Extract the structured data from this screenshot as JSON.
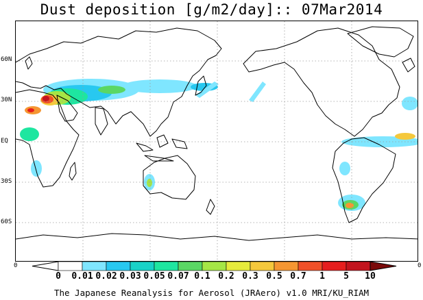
{
  "title": "Dust deposition [g/m2/day]:: 07Mar2014",
  "lat_labels": [
    "60N",
    "30N",
    "EQ",
    "30S",
    "60S"
  ],
  "edge_labels": {
    "left": "0",
    "right": "0"
  },
  "colorbar": {
    "labels": [
      "0",
      "0.01",
      "0.02",
      "0.03",
      "0.05",
      "0.07",
      "0.1",
      "0.2",
      "0.3",
      "0.5",
      "0.7",
      "1",
      "5",
      "10"
    ],
    "colors": [
      "#ffffff",
      "#7fe6ff",
      "#28c8f0",
      "#19d2c8",
      "#1ee6a0",
      "#5ad764",
      "#a5e646",
      "#e6eb3c",
      "#f5c83c",
      "#f59632",
      "#f05028",
      "#e61e1e",
      "#c3141e",
      "#961414"
    ],
    "low_arrow_color": "#ffffff",
    "high_arrow_color": "#7a0a0a"
  },
  "footer": "The Japanese Reanalysis for Aerosol (JRAero) v1.0 MRI/KU_RIAM"
}
